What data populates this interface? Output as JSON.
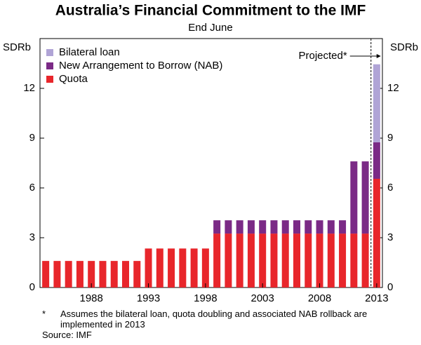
{
  "chart_data": {
    "type": "stacked-bar",
    "title": "Australia’s Financial Commitment to the IMF",
    "subtitle": "End June",
    "y_label": "SDRb",
    "y2_label": "SDRb",
    "annotation": "Projected*",
    "footnote_marker": "*",
    "footnote": "Assumes the bilateral loan, quota doubling and associated NAB rollback are implemented in 2013",
    "source": "Source: IMF",
    "categories": [
      null,
      null,
      null,
      null,
      "1988",
      null,
      null,
      null,
      null,
      "1993",
      null,
      null,
      null,
      null,
      "1998",
      null,
      null,
      null,
      null,
      "2003",
      null,
      null,
      null,
      null,
      "2008",
      null,
      null,
      null,
      null,
      "2013"
    ],
    "series": [
      {
        "name": "Quota",
        "color": "#e8262b",
        "values": [
          1.6,
          1.6,
          1.6,
          1.6,
          1.6,
          1.6,
          1.6,
          1.6,
          1.6,
          2.35,
          2.35,
          2.35,
          2.35,
          2.35,
          2.35,
          3.25,
          3.25,
          3.25,
          3.25,
          3.25,
          3.25,
          3.25,
          3.25,
          3.25,
          3.25,
          3.25,
          3.25,
          3.25,
          3.25,
          6.55
        ]
      },
      {
        "name": "New Arrangement to Borrow (NAB)",
        "color": "#7b2a86",
        "values": [
          null,
          null,
          null,
          null,
          null,
          null,
          null,
          null,
          null,
          null,
          null,
          null,
          null,
          null,
          null,
          0.8,
          0.8,
          0.8,
          0.8,
          0.8,
          0.8,
          0.8,
          0.8,
          0.8,
          0.8,
          0.8,
          0.8,
          4.35,
          4.35,
          2.2
        ]
      },
      {
        "name": "Bilateral loan",
        "color": "#b0a4d6",
        "values": [
          null,
          null,
          null,
          null,
          null,
          null,
          null,
          null,
          null,
          null,
          null,
          null,
          null,
          null,
          null,
          null,
          null,
          null,
          null,
          null,
          null,
          null,
          null,
          null,
          null,
          null,
          null,
          null,
          null,
          4.7
        ]
      }
    ],
    "ylim": [
      0,
      15
    ],
    "yticks": [
      0,
      3,
      6,
      9,
      12
    ],
    "legend": "top-left"
  }
}
